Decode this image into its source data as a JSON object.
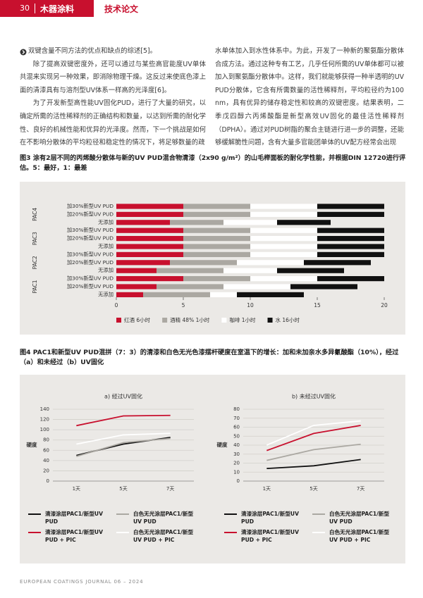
{
  "header": {
    "page_number": "30",
    "section": "木器涂料",
    "category": "技术论文"
  },
  "body": {
    "left": [
      "双键含量不同方法的优点和缺点的综述[5]。",
      "除了提高双键密度外，还可以通过与某些高官能度UV单体共混来实现另一种效果，即消除物理干燥。这反过来使底色漆上面的清漆具有与溶剂型UV体系一样高的光泽度[6]。",
      "为了开发新型高性能UV固化PUD，进行了大量的研究，以确定所需的活性稀释剂的正确结构和数量，以达到所需的耐化学性、良好的机械性能和优异的光泽度。然而，下一个挑战是如何在不影响分散体的平均粒径和稳定性的情况下，将足够数量的疏"
    ],
    "right": [
      "水单体加入到水性体系中。为此，开发了一种新的聚氨酯分散体合成方法。通过这种专有工艺，几乎任何所需的UV单体都可以被加入到聚氨酯分散体中。这样，我们就能够获得一种半透明的UV PUD分散体，它含有所需数量的活性稀释剂，平均粒径约为100 nm，具有优异的储存稳定性和较高的双键密度。结果表明，二季戊四醇六丙烯酸酯是新型高效UV固化的最佳活性稀释剂（DPHA）。通过对PUD树脂的聚合主链进行进一步的调整，还能够缓解脆性问题，含有大量多官能团单体的UV配方经常会出现"
    ]
  },
  "figures": [
    "图3 涂有2层不同的丙烯酸分散体与新的UV PUD混合物清漆（2x90 g/m²）的山毛榉面板的耐化学性能，并根据DIN 12720进行评估。5：最好，1：最差",
    "图4 PAC1和新型UV PUD混拼（7：3）的清漆和白色无光色漆摆杆硬度在室温下的增长：加和未加亲水多异氰酸酯（10%），经过（a）和未经过（b）UV固化"
  ],
  "chart_data": [
    {
      "type": "bar",
      "orientation": "horizontal",
      "stacked": true,
      "group_labels": [
        "PAC4",
        "PAC3",
        "PAC2",
        "PAC1"
      ],
      "categories": [
        "加30%新型UV PUD",
        "加20%新型UV PUD",
        "无添加",
        "加30%新型UV PUD",
        "加20%新型UV PUD",
        "无添加",
        "加30%新型UV PUD",
        "加20%新型UV PUD",
        "无添加",
        "加30%新型UV PUD",
        "加20%新型UV PUD",
        "无添加"
      ],
      "series": [
        {
          "name": "红酒 6小时",
          "color": "#c8102e",
          "values": [
            5,
            5,
            4,
            5,
            5,
            5,
            5,
            4,
            3,
            5,
            3,
            2
          ]
        },
        {
          "name": "酒精 48% 1小时",
          "color": "#aba8a2",
          "values": [
            5,
            5,
            4,
            5,
            5,
            5,
            5,
            5,
            5,
            5,
            5,
            5
          ]
        },
        {
          "name": "咖啡 1小时",
          "color": "#ffffff",
          "values": [
            5,
            5,
            4,
            5,
            5,
            5,
            5,
            5,
            4,
            5,
            5,
            2
          ]
        },
        {
          "name": "水 16小时",
          "color": "#111111",
          "values": [
            5,
            5,
            4,
            5,
            5,
            5,
            5,
            5,
            5,
            5,
            5,
            5
          ]
        }
      ],
      "xlim": [
        0,
        20
      ],
      "xticks": [
        0,
        5,
        10,
        15,
        20
      ]
    },
    {
      "type": "line",
      "title": "a) 经过UV固化",
      "ylabel": "硬度",
      "categories": [
        "1天",
        "5天",
        "7天"
      ],
      "ylim": [
        0,
        140
      ],
      "yticks": [
        0,
        20,
        40,
        60,
        80,
        100,
        120,
        140
      ],
      "grid": true,
      "series": [
        {
          "name": "清漆涂层PAC1/新型UV PUD",
          "color": "#111111",
          "values": [
            50,
            72,
            85
          ]
        },
        {
          "name": "白色无光涂层PAC1/新型UV PUD",
          "color": "#aba8a2",
          "values": [
            48,
            75,
            83
          ]
        },
        {
          "name": "清漆涂层PAC1/新型UV PUD + PIC",
          "color": "#c8102e",
          "values": [
            108,
            127,
            128
          ]
        },
        {
          "name": "白色无光涂层PAC1/新型UV PUD + PIC",
          "color": "#ffffff",
          "values": [
            72,
            90,
            93
          ]
        }
      ]
    },
    {
      "type": "line",
      "title": "b) 未经过UV固化",
      "ylabel": "硬度",
      "categories": [
        "1天",
        "5天",
        "7天"
      ],
      "ylim": [
        0,
        80
      ],
      "yticks": [
        0,
        10,
        20,
        30,
        40,
        50,
        60,
        70,
        80
      ],
      "grid": true,
      "series": [
        {
          "name": "清漆涂层PAC1/新型UV PUD",
          "color": "#111111",
          "values": [
            14,
            17,
            24
          ]
        },
        {
          "name": "白色无光涂层PAC1/新型UV PUD",
          "color": "#aba8a2",
          "values": [
            23,
            35,
            41
          ]
        },
        {
          "name": "清漆涂层PAC1/新型UV PUD + PIC",
          "color": "#c8102e",
          "values": [
            34,
            53,
            62
          ]
        },
        {
          "name": "白色无光涂层PAC1/新型UV PUD + PIC",
          "color": "#ffffff",
          "values": [
            40,
            62,
            67
          ]
        }
      ]
    }
  ],
  "footer": "EUROPEAN COATINGS JOURNAL 06 – 2024"
}
